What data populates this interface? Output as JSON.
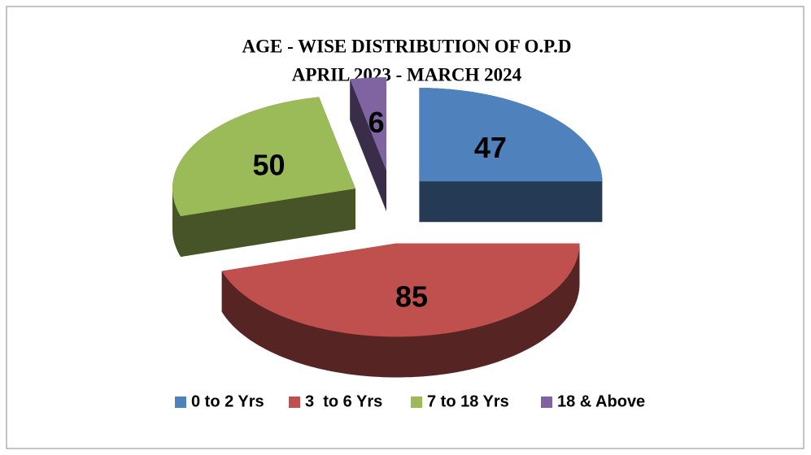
{
  "chart_data": {
    "type": "pie3d",
    "title": "AGE - WISE DISTRIBUTION OF O.P.D",
    "subtitle": "APRIL 2023 - MARCH  2024",
    "categories": [
      "0 to 2 Yrs",
      "3  to 6 Yrs",
      "7 to 18 Yrs",
      "18 & Above"
    ],
    "values": [
      47,
      85,
      50,
      6
    ],
    "colors": [
      "#4f81bd",
      "#c0504d",
      "#9bbb59",
      "#8064a2"
    ],
    "legend": "bottom"
  }
}
